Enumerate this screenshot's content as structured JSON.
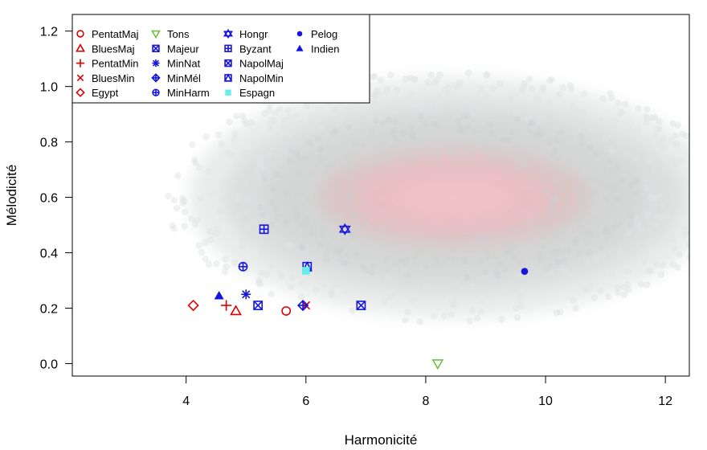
{
  "chart_data": {
    "type": "scatter",
    "title": "",
    "xlabel": "Harmonicité",
    "ylabel": "Mélodicité",
    "xlim": [
      2.1,
      12.4
    ],
    "ylim": [
      -0.045,
      1.26
    ],
    "xticks": [
      4,
      6,
      8,
      10,
      12
    ],
    "yticks": [
      0.0,
      0.2,
      0.4,
      0.6,
      0.8,
      1.0,
      1.2
    ],
    "grid": false,
    "legend_position": "top-left",
    "background_cloud": {
      "description": "",
      "center": [
        8.4,
        0.6
      ],
      "color_outer": "#d9dcdc",
      "color_inner": "#f4b9c2"
    },
    "series": [
      {
        "name": "PentatMaj",
        "marker": "circle-open",
        "color": "#dd0000",
        "x": [
          5.67
        ],
        "y": [
          0.19
        ]
      },
      {
        "name": "BluesMaj",
        "marker": "triangle-open",
        "color": "#dd0000",
        "x": [
          4.83
        ],
        "y": [
          0.19
        ]
      },
      {
        "name": "PentatMin",
        "marker": "plus",
        "color": "#dd0000",
        "x": [
          4.67
        ],
        "y": [
          0.21
        ]
      },
      {
        "name": "BluesMin",
        "marker": "cross",
        "color": "#dd0000",
        "x": [
          6.0
        ],
        "y": [
          0.21
        ]
      },
      {
        "name": "Egypt",
        "marker": "diamond-open",
        "color": "#dd0000",
        "x": [
          4.12
        ],
        "y": [
          0.21
        ]
      },
      {
        "name": "Tons",
        "marker": "triangle-down-open",
        "color": "#77bb44",
        "x": [
          8.2
        ],
        "y": [
          0.0
        ]
      },
      {
        "name": "Majeur",
        "marker": "square-x",
        "color": "#1515dd",
        "x": [
          5.2
        ],
        "y": [
          0.21
        ]
      },
      {
        "name": "MinNat",
        "marker": "asterisk",
        "color": "#1515dd",
        "x": [
          5.0
        ],
        "y": [
          0.25
        ]
      },
      {
        "name": "MinMél",
        "marker": "diamond-plus",
        "color": "#1515dd",
        "x": [
          5.95
        ],
        "y": [
          0.21
        ]
      },
      {
        "name": "MinHarm",
        "marker": "circle-plus",
        "color": "#1515dd",
        "x": [
          4.95
        ],
        "y": [
          0.35
        ]
      },
      {
        "name": "Hongr",
        "marker": "star-of-david",
        "color": "#1515dd",
        "x": [
          6.65
        ],
        "y": [
          0.485
        ]
      },
      {
        "name": "Byzant",
        "marker": "square-plus",
        "color": "#1515dd",
        "x": [
          5.3
        ],
        "y": [
          0.485
        ]
      },
      {
        "name": "NapolMaj",
        "marker": "square-x",
        "color": "#1515dd",
        "x": [
          6.92
        ],
        "y": [
          0.21
        ]
      },
      {
        "name": "NapolMin",
        "marker": "square-triangle",
        "color": "#1515dd",
        "x": [
          6.02
        ],
        "y": [
          0.35
        ]
      },
      {
        "name": "Espagn",
        "marker": "square-filled",
        "color": "#66eeee",
        "x": [
          6.0
        ],
        "y": [
          0.335
        ]
      },
      {
        "name": "Pelog",
        "marker": "circle-filled",
        "color": "#1515dd",
        "x": [
          9.65
        ],
        "y": [
          0.333
        ]
      },
      {
        "name": "Indien",
        "marker": "triangle-filled",
        "color": "#1515dd",
        "x": [
          4.55
        ],
        "y": [
          0.245
        ]
      }
    ]
  }
}
